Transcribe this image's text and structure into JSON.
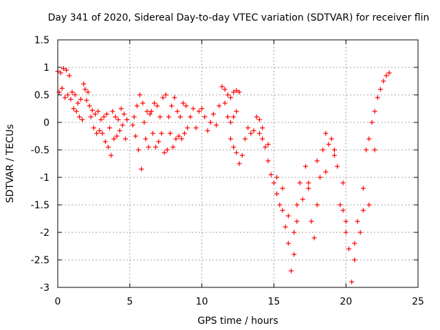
{
  "chart_data": {
    "type": "scatter",
    "title": "Day 341 of 2020, Sidereal Day-to-day VTEC variation (SDTVAR) for receiver flin",
    "xlabel": "GPS time / hours",
    "ylabel": "SDTVAR / TECUs",
    "xlim": [
      0,
      25
    ],
    "ylim": [
      -3,
      1.5
    ],
    "x_ticks": [
      0,
      5,
      10,
      15,
      20,
      25
    ],
    "x_tick_labels": [
      "0",
      "5",
      "10",
      "15",
      "20",
      "25"
    ],
    "y_ticks": [
      -3,
      -2.5,
      -2,
      -1.5,
      -1,
      -0.5,
      0,
      0.5,
      1,
      1.5
    ],
    "y_tick_labels": [
      "-3",
      "-2.5",
      "-2",
      "-1.5",
      "-1",
      "-0.5",
      "0",
      "0.5",
      "1",
      "1.5"
    ],
    "grid": true,
    "marker": "+",
    "color": "#ff0000",
    "series": [
      {
        "name": "SDTVAR",
        "points": [
          [
            0.0,
            0.93
          ],
          [
            0.1,
            0.55
          ],
          [
            0.2,
            0.9
          ],
          [
            0.3,
            0.62
          ],
          [
            0.4,
            0.98
          ],
          [
            0.5,
            0.45
          ],
          [
            0.6,
            0.95
          ],
          [
            0.7,
            0.5
          ],
          [
            0.8,
            0.85
          ],
          [
            0.9,
            0.42
          ],
          [
            1.0,
            0.55
          ],
          [
            1.1,
            0.25
          ],
          [
            1.2,
            0.5
          ],
          [
            1.3,
            0.2
          ],
          [
            1.4,
            0.35
          ],
          [
            1.5,
            0.1
          ],
          [
            1.6,
            0.42
          ],
          [
            1.7,
            0.05
          ],
          [
            1.8,
            0.7
          ],
          [
            1.9,
            0.6
          ],
          [
            2.0,
            0.4
          ],
          [
            2.1,
            0.55
          ],
          [
            2.2,
            0.3
          ],
          [
            2.3,
            0.1
          ],
          [
            2.4,
            0.22
          ],
          [
            2.5,
            -0.1
          ],
          [
            2.6,
            0.15
          ],
          [
            2.7,
            -0.2
          ],
          [
            2.8,
            0.2
          ],
          [
            2.9,
            -0.15
          ],
          [
            3.0,
            0.05
          ],
          [
            3.1,
            -0.2
          ],
          [
            3.2,
            0.1
          ],
          [
            3.3,
            -0.35
          ],
          [
            3.4,
            0.15
          ],
          [
            3.5,
            -0.45
          ],
          [
            3.6,
            -0.1
          ],
          [
            3.7,
            -0.6
          ],
          [
            3.8,
            0.2
          ],
          [
            3.9,
            -0.3
          ],
          [
            4.0,
            0.1
          ],
          [
            4.1,
            -0.25
          ],
          [
            4.2,
            0.05
          ],
          [
            4.3,
            -0.15
          ],
          [
            4.4,
            0.25
          ],
          [
            4.5,
            -0.05
          ],
          [
            4.6,
            0.15
          ],
          [
            4.7,
            -0.3
          ],
          [
            4.8,
            0.05
          ],
          [
            5.2,
            -0.05
          ],
          [
            5.3,
            0.1
          ],
          [
            5.4,
            -0.25
          ],
          [
            5.5,
            0.3
          ],
          [
            5.6,
            -0.5
          ],
          [
            5.7,
            0.5
          ],
          [
            5.8,
            -0.85
          ],
          [
            5.9,
            0.35
          ],
          [
            6.0,
            0.0
          ],
          [
            6.1,
            -0.3
          ],
          [
            6.2,
            0.2
          ],
          [
            6.3,
            -0.45
          ],
          [
            6.4,
            0.15
          ],
          [
            6.5,
            0.2
          ],
          [
            6.6,
            -0.2
          ],
          [
            6.7,
            0.35
          ],
          [
            6.8,
            -0.45
          ],
          [
            6.9,
            0.3
          ],
          [
            7.0,
            -0.35
          ],
          [
            7.1,
            0.1
          ],
          [
            7.2,
            -0.2
          ],
          [
            7.3,
            0.45
          ],
          [
            7.4,
            -0.55
          ],
          [
            7.5,
            0.5
          ],
          [
            7.6,
            -0.5
          ],
          [
            7.7,
            0.1
          ],
          [
            7.8,
            -0.2
          ],
          [
            7.9,
            0.3
          ],
          [
            8.0,
            -0.45
          ],
          [
            8.1,
            0.45
          ],
          [
            8.2,
            -0.3
          ],
          [
            8.3,
            0.2
          ],
          [
            8.4,
            -0.25
          ],
          [
            8.5,
            0.1
          ],
          [
            8.6,
            -0.3
          ],
          [
            8.7,
            0.35
          ],
          [
            8.8,
            -0.2
          ],
          [
            8.9,
            0.3
          ],
          [
            9.0,
            -0.1
          ],
          [
            9.2,
            0.1
          ],
          [
            9.4,
            0.25
          ],
          [
            9.6,
            -0.1
          ],
          [
            9.8,
            0.2
          ],
          [
            10.0,
            0.25
          ],
          [
            10.2,
            0.1
          ],
          [
            10.4,
            -0.15
          ],
          [
            10.6,
            0.0
          ],
          [
            10.8,
            0.15
          ],
          [
            11.0,
            -0.05
          ],
          [
            11.2,
            0.3
          ],
          [
            11.4,
            0.65
          ],
          [
            11.6,
            0.35
          ],
          [
            11.8,
            0.1
          ],
          [
            12.0,
            0.0
          ],
          [
            12.2,
            0.1
          ],
          [
            12.4,
            0.2
          ],
          [
            11.6,
            0.6
          ],
          [
            11.8,
            0.5
          ],
          [
            12.0,
            0.45
          ],
          [
            12.2,
            0.55
          ],
          [
            12.4,
            0.58
          ],
          [
            12.6,
            0.55
          ],
          [
            12.0,
            -0.3
          ],
          [
            12.2,
            -0.45
          ],
          [
            12.4,
            -0.55
          ],
          [
            12.6,
            -0.75
          ],
          [
            12.8,
            -0.6
          ],
          [
            13.0,
            -0.3
          ],
          [
            13.2,
            -0.1
          ],
          [
            13.4,
            -0.2
          ],
          [
            13.6,
            -0.15
          ],
          [
            13.8,
            0.1
          ],
          [
            14.0,
            -0.2
          ],
          [
            14.2,
            -0.1
          ],
          [
            14.4,
            -0.45
          ],
          [
            14.6,
            -0.7
          ],
          [
            14.8,
            -0.95
          ],
          [
            15.0,
            -1.1
          ],
          [
            15.2,
            -1.3
          ],
          [
            15.4,
            -1.5
          ],
          [
            15.6,
            -1.6
          ],
          [
            15.8,
            -1.9
          ],
          [
            16.0,
            -2.2
          ],
          [
            16.2,
            -2.7
          ],
          [
            16.4,
            -2.4
          ],
          [
            16.6,
            -1.5
          ],
          [
            16.8,
            -1.1
          ],
          [
            17.0,
            -1.4
          ],
          [
            17.2,
            -0.8
          ],
          [
            17.4,
            -1.2
          ],
          [
            17.6,
            -1.8
          ],
          [
            17.8,
            -2.1
          ],
          [
            18.0,
            -1.5
          ],
          [
            18.2,
            -1.0
          ],
          [
            18.4,
            -0.5
          ],
          [
            18.6,
            -0.2
          ],
          [
            18.8,
            -0.4
          ],
          [
            19.0,
            -0.3
          ],
          [
            19.2,
            -0.5
          ],
          [
            19.4,
            -0.8
          ],
          [
            19.6,
            -1.5
          ],
          [
            19.8,
            -1.1
          ],
          [
            20.0,
            -1.8
          ],
          [
            20.2,
            -2.3
          ],
          [
            20.4,
            -2.9
          ],
          [
            20.6,
            -2.5
          ],
          [
            20.8,
            -1.8
          ],
          [
            21.0,
            -2.0
          ],
          [
            21.2,
            -1.2
          ],
          [
            21.4,
            -0.5
          ],
          [
            21.6,
            -0.3
          ],
          [
            21.8,
            0.0
          ],
          [
            22.0,
            0.2
          ],
          [
            22.2,
            0.45
          ],
          [
            22.4,
            0.6
          ],
          [
            22.6,
            0.75
          ],
          [
            22.8,
            0.85
          ],
          [
            23.0,
            0.9
          ],
          [
            16.0,
            -1.7
          ],
          [
            16.4,
            -2.0
          ],
          [
            16.6,
            -1.8
          ],
          [
            17.4,
            -1.1
          ],
          [
            18.0,
            -0.7
          ],
          [
            18.6,
            -0.9
          ],
          [
            19.2,
            -0.6
          ],
          [
            19.8,
            -1.6
          ],
          [
            20.0,
            -2.0
          ],
          [
            20.6,
            -2.2
          ],
          [
            21.2,
            -1.6
          ],
          [
            21.6,
            -1.5
          ],
          [
            22.0,
            -0.5
          ],
          [
            14.0,
            0.05
          ],
          [
            14.2,
            -0.3
          ],
          [
            14.6,
            -0.4
          ],
          [
            15.2,
            -1.0
          ],
          [
            15.6,
            -1.2
          ]
        ]
      }
    ]
  }
}
